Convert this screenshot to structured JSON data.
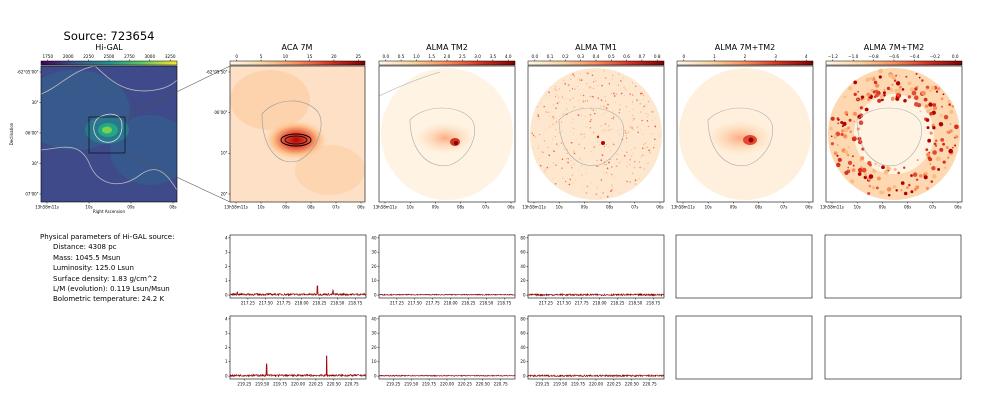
{
  "figure": {
    "source_title": "Source: 723654"
  },
  "maps": [
    {
      "id": "higal",
      "title": "Hi-GAL",
      "cmap": "viridis",
      "colorbar_ticks": [
        "1750",
        "2000",
        "2250",
        "2500",
        "2750",
        "3000",
        "3250"
      ],
      "y_ticks": [
        "-62°05'00\"",
        "30\"",
        "06'00\"",
        "30\"",
        "07'00\""
      ],
      "x_ticks": [
        "13h58m11s",
        "10s",
        "09s",
        "08s"
      ],
      "xlabel": "Right Ascension",
      "ylabel": "Declination"
    },
    {
      "id": "aca7m",
      "title": "ACA 7M",
      "cmap": "orrd",
      "colorbar_ticks": [
        "0",
        "5",
        "10",
        "15",
        "20",
        "25"
      ],
      "y_ticks": [
        "-62°05'50\"",
        "06'00\"",
        "10\"",
        "20\""
      ],
      "x_ticks": [
        "13h58m11s",
        "10s",
        "09s",
        "08s",
        "07s",
        "06s"
      ]
    },
    {
      "id": "tm2",
      "title": "ALMA TM2",
      "cmap": "orrd",
      "colorbar_ticks": [
        "0.0",
        "0.5",
        "1.0",
        "1.5",
        "2.0",
        "2.5",
        "3.0",
        "3.5",
        "4.0"
      ],
      "x_ticks": [
        "13h58m11s",
        "10s",
        "09s",
        "08s",
        "07s",
        "06s"
      ]
    },
    {
      "id": "tm1",
      "title": "ALMA TM1",
      "cmap": "orrd",
      "colorbar_ticks": [
        "0.0",
        "0.1",
        "0.2",
        "0.3",
        "0.4",
        "0.5",
        "0.6",
        "0.7",
        "0.8"
      ],
      "x_ticks": [
        "13h58m11s",
        "10s",
        "09s",
        "08s",
        "07s",
        "06s"
      ]
    },
    {
      "id": "7mtm2",
      "title": "ALMA 7M+TM2",
      "cmap": "orrd",
      "colorbar_ticks": [
        "0",
        "1",
        "2",
        "3",
        "4"
      ],
      "x_ticks": [
        "13h58m11s",
        "10s",
        "09s",
        "08s",
        "07s",
        "06s"
      ]
    },
    {
      "id": "7mtm2b",
      "title": "ALMA 7M+TM2",
      "cmap": "orrd",
      "colorbar_ticks": [
        "−1.2",
        "−1.0",
        "−0.8",
        "−0.6",
        "−0.4",
        "−0.2",
        "0.0"
      ],
      "x_ticks": [
        "13h58m11s",
        "10s",
        "09s",
        "08s",
        "07s",
        "06s"
      ]
    }
  ],
  "params": {
    "header": "Physical parameters of Hi-GAL source:",
    "lines": [
      "Distance: 4308 pc",
      "Mass: 1045.5 Msun",
      "Luminosity: 125.0 Lsun",
      "Surface density: 1.83 g/cm^2",
      "L/M (evolution): 0.119 Lsun/Msun",
      "Bolometric temperature: 24.2 K"
    ]
  },
  "chart_data": [
    {
      "type": "line",
      "panel": "spectrum-aca-7m-row1",
      "xlim": [
        217.0,
        218.9
      ],
      "ylim": [
        -0.2,
        4.2
      ],
      "x_ticks": [
        217.25,
        217.5,
        217.75,
        218.0,
        218.25,
        218.5,
        218.75
      ],
      "x_tick_labels": [
        "217.25",
        "217.50",
        "217.75",
        "218.00",
        "218.25",
        "218.50",
        "218.75"
      ],
      "y_ticks": [
        0,
        1,
        2,
        3,
        4
      ],
      "baseline": 0.05,
      "noise": 0.07,
      "lines": [
        {
          "x": 218.22,
          "peak": 0.6
        },
        {
          "x": 218.44,
          "peak": 0.25
        },
        {
          "x": 217.1,
          "peak": 0.15
        }
      ]
    },
    {
      "type": "line",
      "panel": "spectrum-tm2-row1",
      "xlim": [
        217.0,
        218.9
      ],
      "ylim": [
        -2,
        42
      ],
      "x_ticks": [
        217.25,
        217.5,
        217.75,
        218.0,
        218.25,
        218.5,
        218.75
      ],
      "x_tick_labels": [
        "217.25",
        "217.50",
        "217.75",
        "218.00",
        "218.25",
        "218.50",
        "218.75"
      ],
      "y_ticks": [
        0,
        10,
        20,
        30,
        40
      ],
      "baseline": 0.3,
      "noise": 0.35,
      "lines": []
    },
    {
      "type": "line",
      "panel": "spectrum-tm1-row1",
      "xlim": [
        217.0,
        218.9
      ],
      "ylim": [
        -4,
        84
      ],
      "x_ticks": [
        217.25,
        217.5,
        217.75,
        218.0,
        218.25,
        218.5,
        218.75
      ],
      "x_tick_labels": [
        "217.25",
        "217.50",
        "217.75",
        "218.00",
        "218.25",
        "218.50",
        "218.75"
      ],
      "y_ticks": [
        0,
        20,
        40,
        60,
        80
      ],
      "baseline": 0.5,
      "noise": 1.2,
      "lines": []
    },
    {
      "type": "line",
      "panel": "spectrum-aca-7m-row2",
      "xlim": [
        219.05,
        220.95
      ],
      "ylim": [
        -0.2,
        4.2
      ],
      "x_ticks": [
        219.25,
        219.5,
        219.75,
        220.0,
        220.25,
        220.5,
        220.75
      ],
      "x_tick_labels": [
        "219.25",
        "219.50",
        "219.75",
        "220.00",
        "220.25",
        "220.50",
        "220.75"
      ],
      "y_ticks": [
        0,
        1,
        2,
        3,
        4
      ],
      "baseline": 0.05,
      "noise": 0.07,
      "lines": [
        {
          "x": 220.4,
          "peak": 1.35
        },
        {
          "x": 219.56,
          "peak": 0.75
        }
      ]
    },
    {
      "type": "line",
      "panel": "spectrum-tm2-row2",
      "xlim": [
        219.05,
        220.95
      ],
      "ylim": [
        -2,
        42
      ],
      "x_ticks": [
        219.25,
        219.5,
        219.75,
        220.0,
        220.25,
        220.5,
        220.75
      ],
      "x_tick_labels": [
        "219.25",
        "219.50",
        "219.75",
        "220.00",
        "220.25",
        "220.50",
        "220.75"
      ],
      "y_ticks": [
        0,
        10,
        20,
        30,
        40
      ],
      "baseline": 0.3,
      "noise": 0.35,
      "lines": []
    },
    {
      "type": "line",
      "panel": "spectrum-tm1-row2",
      "xlim": [
        219.05,
        220.95
      ],
      "ylim": [
        -4,
        84
      ],
      "x_ticks": [
        219.25,
        219.5,
        219.75,
        220.0,
        220.25,
        220.5,
        220.75
      ],
      "x_tick_labels": [
        "219.25",
        "219.50",
        "219.75",
        "220.00",
        "220.25",
        "220.50",
        "220.75"
      ],
      "y_ticks": [
        0,
        20,
        40,
        60,
        80
      ],
      "baseline": 0.5,
      "noise": 1.2,
      "lines": []
    }
  ]
}
